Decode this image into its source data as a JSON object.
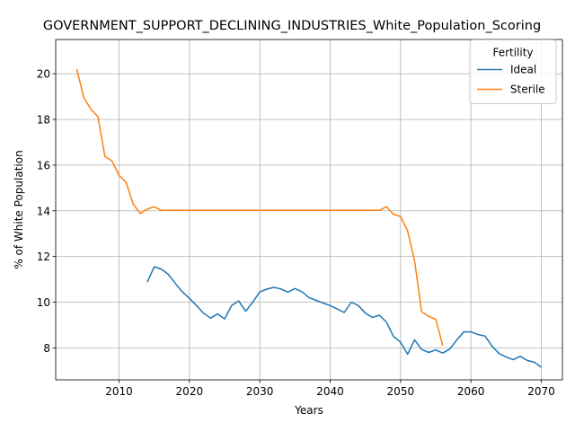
{
  "chart_data": {
    "type": "line",
    "title": "GOVERNMENT_SUPPORT_DECLINING_INDUSTRIES_White_Population_Scoring",
    "xlabel": "Years",
    "ylabel": "% of White Population",
    "xlim": [
      2001,
      2073
    ],
    "ylim": [
      6.6,
      21.5
    ],
    "xticks": [
      2010,
      2020,
      2030,
      2040,
      2050,
      2060,
      2070
    ],
    "yticks": [
      8,
      10,
      12,
      14,
      16,
      18,
      20
    ],
    "grid": true,
    "legend": {
      "title": "Fertility",
      "placement": "top-right"
    },
    "series": [
      {
        "name": "Ideal",
        "color": "#1f77b4",
        "points": [
          [
            2014,
            10.87
          ],
          [
            2015,
            11.55
          ],
          [
            2016,
            11.45
          ],
          [
            2017,
            11.22
          ],
          [
            2018,
            10.82
          ],
          [
            2019,
            10.45
          ],
          [
            2020,
            10.17
          ],
          [
            2021,
            9.85
          ],
          [
            2022,
            9.52
          ],
          [
            2023,
            9.3
          ],
          [
            2024,
            9.48
          ],
          [
            2025,
            9.27
          ],
          [
            2026,
            9.85
          ],
          [
            2027,
            10.05
          ],
          [
            2028,
            9.6
          ],
          [
            2029,
            10.0
          ],
          [
            2030,
            10.45
          ],
          [
            2031,
            10.57
          ],
          [
            2032,
            10.65
          ],
          [
            2033,
            10.58
          ],
          [
            2034,
            10.44
          ],
          [
            2035,
            10.6
          ],
          [
            2036,
            10.45
          ],
          [
            2037,
            10.2
          ],
          [
            2038,
            10.08
          ],
          [
            2039,
            9.96
          ],
          [
            2040,
            9.85
          ],
          [
            2041,
            9.7
          ],
          [
            2042,
            9.55
          ],
          [
            2043,
            10.0
          ],
          [
            2044,
            9.85
          ],
          [
            2045,
            9.52
          ],
          [
            2046,
            9.33
          ],
          [
            2047,
            9.43
          ],
          [
            2048,
            9.12
          ],
          [
            2049,
            8.5
          ],
          [
            2050,
            8.25
          ],
          [
            2051,
            7.72
          ],
          [
            2052,
            8.35
          ],
          [
            2053,
            7.93
          ],
          [
            2054,
            7.8
          ],
          [
            2055,
            7.91
          ],
          [
            2056,
            7.77
          ],
          [
            2057,
            7.95
          ],
          [
            2058,
            8.35
          ],
          [
            2059,
            8.7
          ],
          [
            2060,
            8.7
          ],
          [
            2061,
            8.58
          ],
          [
            2062,
            8.52
          ],
          [
            2063,
            8.07
          ],
          [
            2064,
            7.75
          ],
          [
            2065,
            7.6
          ],
          [
            2066,
            7.48
          ],
          [
            2067,
            7.63
          ],
          [
            2068,
            7.45
          ],
          [
            2069,
            7.37
          ],
          [
            2070,
            7.15
          ]
        ]
      },
      {
        "name": "Sterile",
        "color": "#ff7f0e",
        "points": [
          [
            2004,
            20.2
          ],
          [
            2005,
            18.95
          ],
          [
            2006,
            18.45
          ],
          [
            2007,
            18.12
          ],
          [
            2008,
            16.38
          ],
          [
            2009,
            16.18
          ],
          [
            2010,
            15.55
          ],
          [
            2011,
            15.25
          ],
          [
            2012,
            14.3
          ],
          [
            2013,
            13.88
          ],
          [
            2014,
            14.07
          ],
          [
            2015,
            14.18
          ],
          [
            2016,
            14.02
          ],
          [
            2017,
            14.02
          ],
          [
            2018,
            14.02
          ],
          [
            2019,
            14.02
          ],
          [
            2020,
            14.02
          ],
          [
            2021,
            14.02
          ],
          [
            2022,
            14.02
          ],
          [
            2023,
            14.02
          ],
          [
            2024,
            14.02
          ],
          [
            2025,
            14.02
          ],
          [
            2026,
            14.02
          ],
          [
            2027,
            14.02
          ],
          [
            2028,
            14.02
          ],
          [
            2029,
            14.02
          ],
          [
            2030,
            14.02
          ],
          [
            2031,
            14.02
          ],
          [
            2032,
            14.02
          ],
          [
            2033,
            14.02
          ],
          [
            2034,
            14.02
          ],
          [
            2035,
            14.02
          ],
          [
            2036,
            14.02
          ],
          [
            2037,
            14.02
          ],
          [
            2038,
            14.02
          ],
          [
            2039,
            14.02
          ],
          [
            2040,
            14.02
          ],
          [
            2041,
            14.02
          ],
          [
            2042,
            14.02
          ],
          [
            2043,
            14.02
          ],
          [
            2044,
            14.02
          ],
          [
            2045,
            14.02
          ],
          [
            2046,
            14.02
          ],
          [
            2047,
            14.02
          ],
          [
            2048,
            14.18
          ],
          [
            2049,
            13.85
          ],
          [
            2050,
            13.75
          ],
          [
            2051,
            13.12
          ],
          [
            2052,
            11.8
          ],
          [
            2053,
            9.58
          ],
          [
            2054,
            9.38
          ],
          [
            2055,
            9.25
          ],
          [
            2056,
            8.1
          ]
        ]
      }
    ]
  }
}
